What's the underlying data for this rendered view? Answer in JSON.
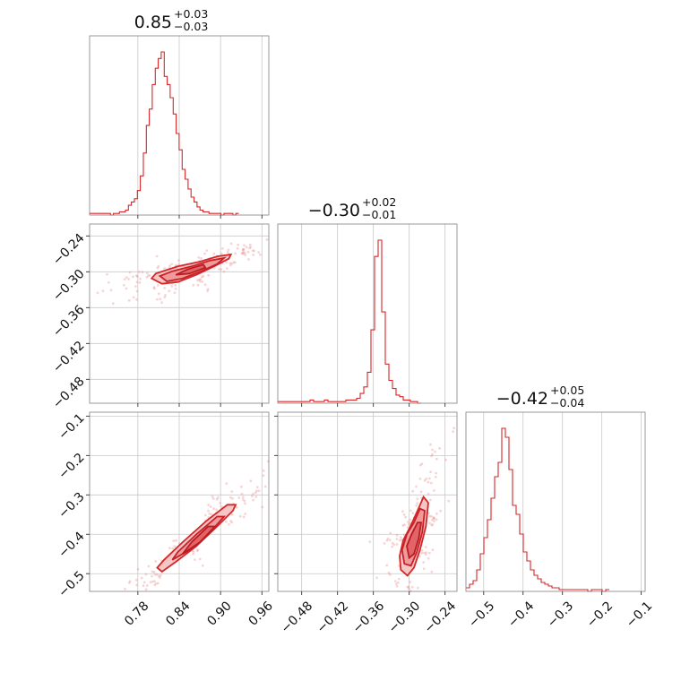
{
  "chart_data": {
    "type": "corner",
    "params": [
      {
        "median": "0.85",
        "plus": "+0.03",
        "minus": "−0.03"
      },
      {
        "median": "−0.30",
        "plus": "+0.02",
        "minus": "−0.01"
      },
      {
        "median": "−0.42",
        "plus": "+0.05",
        "minus": "−0.04"
      }
    ],
    "ranges": [
      [
        0.71,
        0.97
      ],
      [
        -0.52,
        -0.22
      ],
      [
        -0.545,
        -0.09
      ]
    ],
    "ticks": [
      {
        "values": [
          0.78,
          0.84,
          0.9,
          0.96
        ],
        "labels": [
          "0.78",
          "0.84",
          "0.90",
          "0.96"
        ]
      },
      {
        "values": [
          -0.48,
          -0.42,
          -0.36,
          -0.3,
          -0.24
        ],
        "labels": [
          "−0.48",
          "−0.42",
          "−0.36",
          "−0.30",
          "−0.24"
        ]
      },
      {
        "values": [
          -0.5,
          -0.4,
          -0.3,
          -0.2,
          -0.1
        ],
        "labels": [
          "−0.5",
          "−0.4",
          "−0.3",
          "−0.2",
          "−0.1"
        ]
      }
    ],
    "grid": true,
    "color": "#d62728",
    "histograms": [
      {
        "bin_start": 0.71,
        "bin_width": 0.00433,
        "counts": [
          1,
          1,
          1,
          1,
          1,
          1,
          1,
          0,
          1,
          1,
          2,
          2,
          3,
          6,
          8,
          10,
          15,
          24,
          38,
          55,
          65,
          80,
          90,
          96,
          100,
          85,
          80,
          72,
          62,
          50,
          40,
          28,
          22,
          16,
          11,
          8,
          5,
          3,
          2,
          2,
          1,
          1,
          1,
          1,
          0,
          1,
          1,
          1,
          0,
          1
        ]
      },
      {
        "bin_start": -0.52,
        "bin_width": 0.006,
        "counts": [
          1,
          1,
          1,
          1,
          1,
          1,
          1,
          1,
          1,
          2,
          1,
          1,
          1,
          2,
          1,
          1,
          1,
          1,
          1,
          2,
          2,
          2,
          3,
          6,
          10,
          19,
          45,
          90,
          100,
          56,
          24,
          14,
          9,
          5,
          4,
          2,
          2,
          1,
          1,
          0
        ]
      },
      {
        "bin_start": -0.545,
        "bin_width": 0.0091,
        "counts": [
          2,
          4,
          6,
          12,
          21,
          30,
          40,
          52,
          64,
          72,
          91,
          86,
          68,
          48,
          43,
          32,
          22,
          17,
          12,
          9,
          7,
          5,
          4,
          3,
          2,
          2,
          1,
          1,
          1,
          1,
          1,
          1,
          1,
          1,
          0,
          1,
          1,
          1,
          0,
          1
        ]
      }
    ],
    "pairs": [
      {
        "x_param": 0,
        "y_param": 1,
        "outer": [
          [
            0.806,
            -0.303
          ],
          [
            0.8,
            -0.311
          ],
          [
            0.815,
            -0.32
          ],
          [
            0.838,
            -0.317
          ],
          [
            0.865,
            -0.305
          ],
          [
            0.892,
            -0.29
          ],
          [
            0.912,
            -0.278
          ],
          [
            0.915,
            -0.271
          ],
          [
            0.896,
            -0.274
          ],
          [
            0.87,
            -0.283
          ],
          [
            0.838,
            -0.291
          ]
        ],
        "mid": [
          [
            0.812,
            -0.307
          ],
          [
            0.822,
            -0.316
          ],
          [
            0.845,
            -0.311
          ],
          [
            0.872,
            -0.299
          ],
          [
            0.895,
            -0.287
          ],
          [
            0.905,
            -0.277
          ],
          [
            0.885,
            -0.281
          ],
          [
            0.858,
            -0.291
          ],
          [
            0.83,
            -0.299
          ]
        ],
        "inner": [
          [
            0.835,
            -0.305
          ],
          [
            0.855,
            -0.303
          ],
          [
            0.878,
            -0.293
          ],
          [
            0.875,
            -0.288
          ],
          [
            0.852,
            -0.296
          ]
        ]
      },
      {
        "x_param": 0,
        "y_param": 2,
        "outer": [
          [
            0.808,
            -0.485
          ],
          [
            0.815,
            -0.495
          ],
          [
            0.835,
            -0.47
          ],
          [
            0.865,
            -0.43
          ],
          [
            0.895,
            -0.38
          ],
          [
            0.918,
            -0.34
          ],
          [
            0.922,
            -0.325
          ],
          [
            0.91,
            -0.325
          ],
          [
            0.88,
            -0.365
          ],
          [
            0.845,
            -0.42
          ],
          [
            0.818,
            -0.465
          ]
        ],
        "mid": [
          [
            0.83,
            -0.465
          ],
          [
            0.855,
            -0.44
          ],
          [
            0.885,
            -0.395
          ],
          [
            0.905,
            -0.355
          ],
          [
            0.895,
            -0.355
          ],
          [
            0.865,
            -0.4
          ],
          [
            0.838,
            -0.445
          ]
        ],
        "inner": [
          [
            0.845,
            -0.45
          ],
          [
            0.87,
            -0.42
          ],
          [
            0.892,
            -0.38
          ],
          [
            0.882,
            -0.38
          ],
          [
            0.858,
            -0.42
          ]
        ]
      },
      {
        "x_param": 1,
        "y_param": 2,
        "outer": [
          [
            -0.316,
            -0.455
          ],
          [
            -0.314,
            -0.49
          ],
          [
            -0.303,
            -0.505
          ],
          [
            -0.292,
            -0.485
          ],
          [
            -0.282,
            -0.44
          ],
          [
            -0.272,
            -0.38
          ],
          [
            -0.268,
            -0.32
          ],
          [
            -0.276,
            -0.305
          ],
          [
            -0.286,
            -0.34
          ],
          [
            -0.298,
            -0.38
          ],
          [
            -0.31,
            -0.415
          ]
        ],
        "mid": [
          [
            -0.312,
            -0.44
          ],
          [
            -0.308,
            -0.475
          ],
          [
            -0.297,
            -0.48
          ],
          [
            -0.287,
            -0.445
          ],
          [
            -0.278,
            -0.395
          ],
          [
            -0.274,
            -0.34
          ],
          [
            -0.282,
            -0.335
          ],
          [
            -0.292,
            -0.37
          ],
          [
            -0.304,
            -0.4
          ]
        ],
        "inner": [
          [
            -0.304,
            -0.43
          ],
          [
            -0.3,
            -0.46
          ],
          [
            -0.292,
            -0.45
          ],
          [
            -0.284,
            -0.41
          ],
          [
            -0.28,
            -0.37
          ],
          [
            -0.286,
            -0.37
          ],
          [
            -0.296,
            -0.4
          ]
        ]
      }
    ]
  }
}
